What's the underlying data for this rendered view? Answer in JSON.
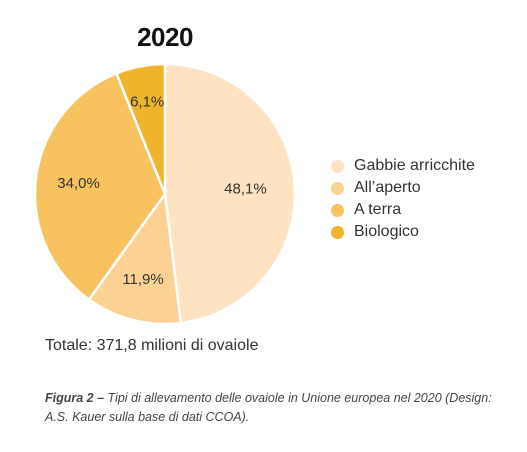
{
  "chart_data": {
    "type": "pie",
    "title": "2020",
    "categories": [
      "Gabbie arricchite",
      "All’aperto",
      "A terra",
      "Biologico"
    ],
    "values": [
      48.1,
      11.9,
      34.0,
      6.1
    ],
    "value_labels": [
      "48,1%",
      "11,9%",
      "34,0%",
      "6,1%"
    ],
    "colors": [
      "#fde3c1",
      "#fbd294",
      "#f8c35f",
      "#f0b32c"
    ],
    "legend_position": "right"
  },
  "total_text": "Totale: 371,8 milioni di ovaiole",
  "caption": {
    "label": "Figura 2 –",
    "text": " Tipi di allevamento delle ovaiole in Unione europea nel 2020 (Design: A.S. Kauer sulla base di dati CCOA)."
  }
}
